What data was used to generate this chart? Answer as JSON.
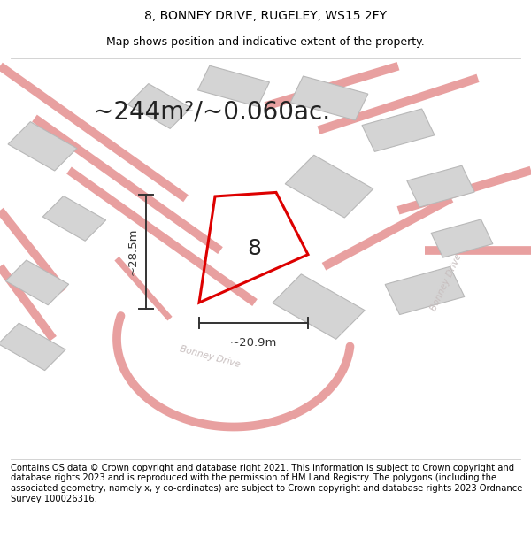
{
  "title": "8, BONNEY DRIVE, RUGELEY, WS15 2FY",
  "subtitle": "Map shows position and indicative extent of the property.",
  "area_text": "~244m²/~0.060ac.",
  "number_label": "8",
  "dim_height": "~28.5m",
  "dim_width": "~20.9m",
  "footer": "Contains OS data © Crown copyright and database right 2021. This information is subject to Crown copyright and database rights 2023 and is reproduced with the permission of HM Land Registry. The polygons (including the associated geometry, namely x, y co-ordinates) are subject to Crown copyright and database rights 2023 Ordnance Survey 100026316.",
  "bg_color": "#f2f2ee",
  "map_bg": "#f2f2ee",
  "title_fontsize": 10,
  "subtitle_fontsize": 9,
  "area_fontsize": 20,
  "footer_fontsize": 7.2,
  "street_color": "#e8a0a0",
  "building_color": "#d4d4d4",
  "building_edge": "#b0b0b0",
  "road_label_color": "#c0b8b8",
  "dim_color": "#333333",
  "red_color": "#dd0000",
  "label_color": "#222222"
}
